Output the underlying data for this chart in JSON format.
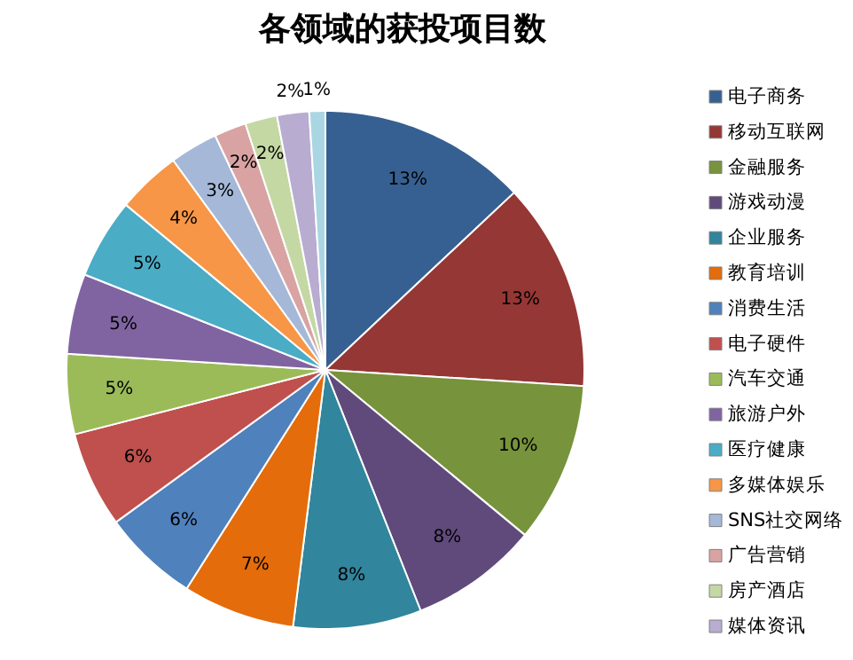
{
  "chart_data": {
    "type": "pie",
    "title": "各领域的获投项目数",
    "categories": [
      "电子商务",
      "移动互联网",
      "金融服务",
      "游戏动漫",
      "企业服务",
      "教育培训",
      "消费生活",
      "电子硬件",
      "汽车交通",
      "旅游户外",
      "医疗健康",
      "多媒体娱乐",
      "SNS社交网络",
      "广告营销",
      "房产酒店",
      "媒体资讯",
      null
    ],
    "values": [
      13,
      13,
      10,
      8,
      8,
      7,
      6,
      6,
      5,
      5,
      5,
      4,
      3,
      2,
      2,
      2,
      1
    ],
    "value_labels": [
      "13%",
      "13%",
      "10%",
      "8%",
      "8%",
      "7%",
      "6%",
      "6%",
      "5%",
      "5%",
      "5%",
      "4%",
      "3%",
      "2%",
      "2%",
      "2%",
      "1%"
    ],
    "colors": [
      "#376092",
      "#953735",
      "#77933c",
      "#604a7b",
      "#31859c",
      "#e46c0a",
      "#4f81bd",
      "#c0504d",
      "#9bbb59",
      "#8064a2",
      "#4bacc6",
      "#f79646",
      "#a5b8d8",
      "#d9a3a3",
      "#c4d8a4",
      "#b8acd0",
      "#a9d6e2"
    ],
    "legend": "right"
  }
}
